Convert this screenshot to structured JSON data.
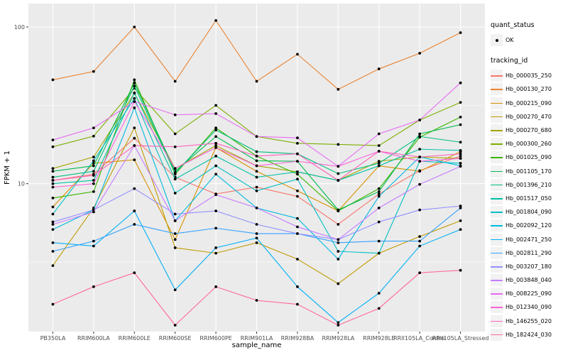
{
  "chart_data": {
    "type": "line",
    "title": "",
    "xlabel": "sample_name",
    "ylabel": "FPKM + 1",
    "y_scale": "log10",
    "ylim": [
      1.1,
      140
    ],
    "grid": true,
    "panel_bg": "#EBEBEB",
    "grid_color": "#FFFFFF",
    "point_color": "#000000",
    "axis_text_color": "#4D4D4D",
    "legend_key_bg": "#F2F2F2",
    "y_ticks": [
      {
        "label": "100",
        "value": 100
      },
      {
        "label": "10",
        "value": 10
      }
    ],
    "categories": [
      "PB350LA",
      "RRIM600LA",
      "RRIM600LE",
      "RRIM600SE",
      "RRIM600PE",
      "RRIM901LA",
      "RRIM928BA",
      "RRIM928LA",
      "RRIM928LE",
      "RRII105LA_Control",
      "RRII105LA_Stressed"
    ],
    "legend": {
      "quant_status_title": "quant_status",
      "quant_status_items": [
        "OK"
      ],
      "tracking_id_title": "tracking_id"
    },
    "series": [
      {
        "name": "Hb_000035_250",
        "color": "#F8766D",
        "values": [
          10.5,
          11.5,
          19.5,
          11.0,
          8.6,
          9.5,
          8.3,
          5.5,
          8.6,
          12.1,
          15.0
        ]
      },
      {
        "name": "Hb_000130_270",
        "color": "#EA8331",
        "values": [
          46,
          52,
          100,
          45,
          110,
          45,
          67,
          40,
          54,
          68,
          92
        ]
      },
      {
        "name": "Hb_000215_090",
        "color": "#D89000",
        "values": [
          7.1,
          13.5,
          14.2,
          4.4,
          17.0,
          12.0,
          9.0,
          6.7,
          13.0,
          12.0,
          16.0
        ]
      },
      {
        "name": "Hb_000270_470",
        "color": "#C09B00",
        "values": [
          3.0,
          7.0,
          22.7,
          3.9,
          3.6,
          4.2,
          3.3,
          2.3,
          3.6,
          4.6,
          5.8
        ]
      },
      {
        "name": "Hb_000270_680",
        "color": "#A3A500",
        "values": [
          12.5,
          14.8,
          37.7,
          12.5,
          17.5,
          13.0,
          11.9,
          10.5,
          13.9,
          14.8,
          14.5
        ]
      },
      {
        "name": "Hb_000300_260",
        "color": "#7CAE00",
        "values": [
          17.2,
          20.1,
          40.6,
          20.8,
          31.6,
          20.0,
          18.1,
          17.8,
          17.5,
          25.5,
          33.0
        ]
      },
      {
        "name": "Hb_001025_090",
        "color": "#39B600",
        "values": [
          8.1,
          8.9,
          46.0,
          11.5,
          22.7,
          15.0,
          11.5,
          6.7,
          9.3,
          19.8,
          26.6
        ]
      },
      {
        "name": "Hb_001105_170",
        "color": "#00BB4E",
        "values": [
          12.0,
          13.0,
          44.0,
          12.0,
          20.0,
          14.0,
          13.9,
          6.8,
          8.9,
          20.8,
          23.8
        ]
      },
      {
        "name": "Hb_001396_210",
        "color": "#00BF7D",
        "values": [
          11.0,
          12.0,
          42.0,
          11.7,
          22.0,
          16.0,
          15.5,
          11.6,
          13.5,
          20.0,
          18.4
        ]
      },
      {
        "name": "Hb_001517_050",
        "color": "#00C1A3",
        "values": [
          10.0,
          10.5,
          38.0,
          10.7,
          15.0,
          11.0,
          11.9,
          10.5,
          13.0,
          16.6,
          16.3
        ]
      },
      {
        "name": "Hb_001804_090",
        "color": "#00BFC4",
        "values": [
          6.4,
          14.0,
          35.0,
          8.7,
          13.0,
          9.0,
          10.7,
          3.7,
          3.6,
          13.9,
          13.5
        ]
      },
      {
        "name": "Hb_002092_120",
        "color": "#00BAE0",
        "values": [
          5.1,
          6.8,
          30.5,
          5.8,
          11.5,
          7.0,
          6.0,
          3.3,
          8.3,
          14.8,
          13.0
        ]
      },
      {
        "name": "Hb_002471_250",
        "color": "#00B0F6",
        "values": [
          4.2,
          4.0,
          6.7,
          2.1,
          3.9,
          4.5,
          2.2,
          1.3,
          2.0,
          4.0,
          5.1
        ]
      },
      {
        "name": "Hb_002811_290",
        "color": "#35A2FF",
        "values": [
          3.7,
          4.3,
          5.5,
          4.8,
          5.2,
          4.8,
          4.8,
          4.2,
          4.3,
          4.3,
          7.0
        ]
      },
      {
        "name": "Hb_003207_180",
        "color": "#9590FF",
        "values": [
          5.7,
          6.8,
          9.3,
          6.4,
          6.7,
          5.5,
          4.8,
          4.4,
          5.7,
          6.8,
          7.2
        ]
      },
      {
        "name": "Hb_003848_040",
        "color": "#C77CFF",
        "values": [
          5.5,
          6.6,
          17.5,
          5.8,
          8.5,
          7.0,
          5.3,
          4.4,
          7.0,
          9.9,
          12.9
        ]
      },
      {
        "name": "Hb_008225_090",
        "color": "#E76BF3",
        "values": [
          19.0,
          22.7,
          33.4,
          27.5,
          28.0,
          20.0,
          19.6,
          12.9,
          20.8,
          25.5,
          44.0
        ]
      },
      {
        "name": "Hb_012340_090",
        "color": "#FA62DB",
        "values": [
          9.5,
          10.0,
          33.4,
          12.5,
          17.0,
          13.0,
          13.9,
          12.9,
          16.1,
          13.9,
          14.5
        ]
      },
      {
        "name": "Hb_146255_020",
        "color": "#FF62BC",
        "values": [
          10.5,
          11.3,
          17.5,
          17.2,
          18.1,
          15.0,
          15.5,
          10.5,
          16.1,
          14.8,
          15.5
        ]
      },
      {
        "name": "Hb_182424_030",
        "color": "#FF6A98",
        "values": [
          1.7,
          2.2,
          2.7,
          1.25,
          2.2,
          1.8,
          1.7,
          1.25,
          1.6,
          2.7,
          2.8
        ]
      }
    ]
  }
}
